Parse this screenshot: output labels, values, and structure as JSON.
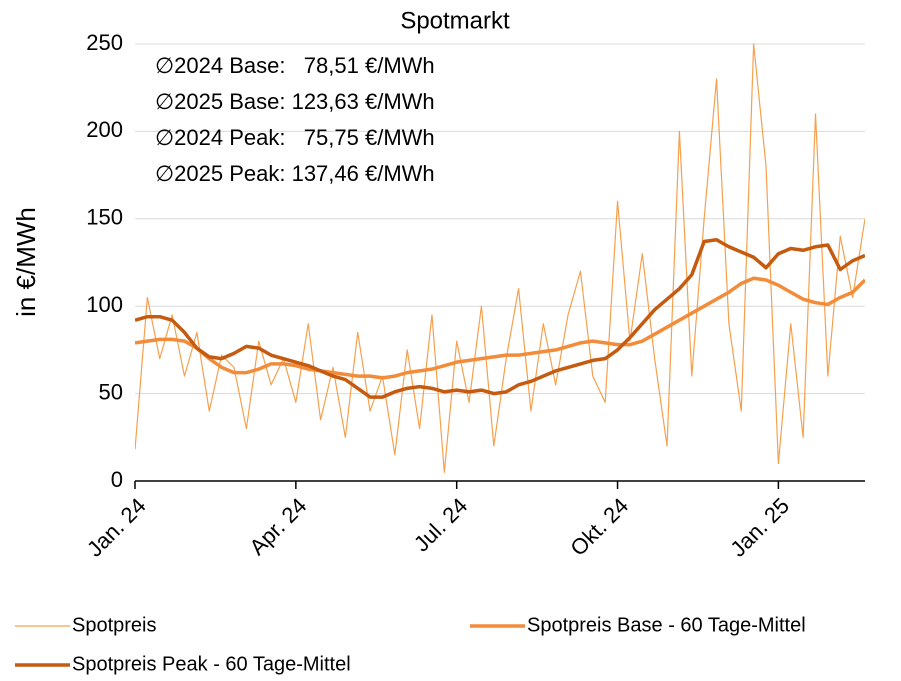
{
  "chart_data": {
    "type": "line",
    "title": "Spotmarkt",
    "y_label": "in €/MWh",
    "annotations": [
      {
        "text": "∅2024 Base:   78,51 €/MWh",
        "color": "#F59A4A"
      },
      {
        "text": "∅2025 Base: 123,63 €/MWh",
        "color": "#F28C3A"
      },
      {
        "text": "∅2024 Peak:   75,75 €/MWh",
        "color": "#C55A11"
      },
      {
        "text": "∅2025 Peak: 137,46 €/MWh",
        "color": "#C55A11"
      }
    ],
    "categories": [
      "Jan. 24",
      null,
      null,
      null,
      null,
      null,
      null,
      null,
      null,
      null,
      null,
      null,
      null,
      "Apr. 24",
      null,
      null,
      null,
      null,
      null,
      null,
      null,
      null,
      null,
      null,
      null,
      null,
      "Jul. 24",
      null,
      null,
      null,
      null,
      null,
      null,
      null,
      null,
      null,
      null,
      null,
      null,
      "Okt. 24",
      null,
      null,
      null,
      null,
      null,
      null,
      null,
      null,
      null,
      null,
      null,
      null,
      "Jan. 25",
      null,
      null,
      null,
      null,
      null,
      null,
      null
    ],
    "series": [
      {
        "name": "Spotpreis",
        "color": "#F6A04D",
        "width": 1.2,
        "values": [
          18,
          105,
          70,
          95,
          60,
          85,
          40,
          72,
          65,
          30,
          80,
          55,
          70,
          45,
          90,
          35,
          65,
          25,
          85,
          40,
          60,
          15,
          75,
          30,
          95,
          5,
          80,
          45,
          100,
          20,
          70,
          110,
          40,
          90,
          55,
          95,
          120,
          60,
          45,
          160,
          80,
          130,
          70,
          20,
          200,
          60,
          150,
          230,
          90,
          40,
          250,
          180,
          10,
          90,
          25,
          210,
          60,
          140,
          105,
          150
        ]
      },
      {
        "name": "Spotpreis Base - 60 Tage-Mittel",
        "color": "#F28C3A",
        "width": 3.5,
        "values": [
          79,
          80,
          81,
          81,
          80,
          76,
          70,
          65,
          62,
          62,
          64,
          67,
          67,
          66,
          64,
          63,
          62,
          61,
          60,
          60,
          59,
          60,
          62,
          63,
          64,
          66,
          68,
          69,
          70,
          71,
          72,
          72,
          73,
          74,
          75,
          77,
          79,
          80,
          79,
          78,
          78,
          80,
          84,
          88,
          92,
          96,
          100,
          104,
          108,
          113,
          116,
          115,
          112,
          108,
          104,
          102,
          101,
          105,
          108,
          115
        ]
      },
      {
        "name": "Spotpreis Peak - 60 Tage-Mittel",
        "color": "#C55A11",
        "width": 3.5,
        "values": [
          92,
          94,
          94,
          92,
          85,
          76,
          71,
          70,
          73,
          77,
          76,
          72,
          70,
          68,
          66,
          63,
          60,
          58,
          53,
          48,
          48,
          51,
          53,
          54,
          53,
          51,
          52,
          51,
          52,
          50,
          51,
          55,
          57,
          60,
          63,
          65,
          67,
          69,
          70,
          75,
          82,
          90,
          98,
          104,
          110,
          118,
          137,
          138,
          134,
          131,
          128,
          122,
          130,
          133,
          132,
          134,
          135,
          121,
          126,
          129
        ]
      }
    ],
    "ylim": [
      0,
      250
    ],
    "yticks": [
      0,
      50,
      100,
      150,
      200,
      250
    ],
    "grid": true
  }
}
